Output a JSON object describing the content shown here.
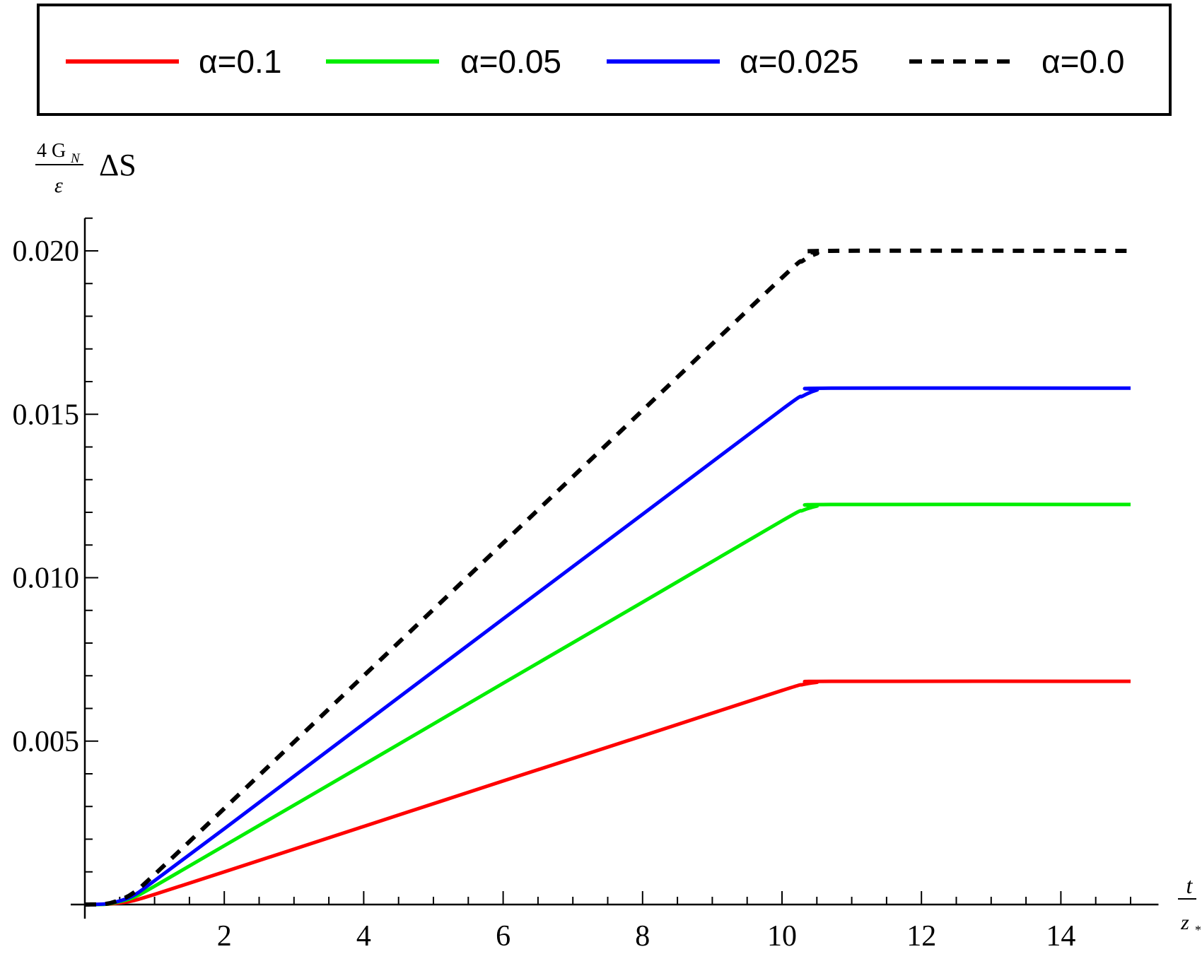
{
  "chart_data": {
    "type": "line",
    "title": "",
    "xlabel": {
      "numerator": "t",
      "denominator": "z",
      "denominator_sub": "*"
    },
    "ylabel": {
      "numerator": "4 G",
      "numerator_sub": "N",
      "denominator": "ε",
      "suffix": "ΔS"
    },
    "xlim": [
      0,
      15.4
    ],
    "ylim": [
      0,
      0.021
    ],
    "x_ticks": [
      2,
      4,
      6,
      8,
      10,
      12,
      14
    ],
    "x_tick_labels": [
      "2",
      "4",
      "6",
      "8",
      "10",
      "12",
      "14"
    ],
    "y_ticks": [
      0.005,
      0.01,
      0.015,
      0.02
    ],
    "y_tick_labels": [
      "0.005",
      "0.010",
      "0.015",
      "0.020"
    ],
    "grid": false,
    "legend_placement": "top (framed box above plot)",
    "x": [
      0,
      0.3,
      0.5,
      0.7,
      1,
      2,
      4,
      6,
      8,
      10,
      10.3,
      10.5,
      10.7,
      15
    ],
    "series": [
      {
        "name": "α=0.1",
        "color": "#ff0000",
        "dashed": false,
        "values": [
          0,
          1e-05,
          5e-05,
          0.00012,
          0.00031,
          0.001,
          0.00239,
          0.00378,
          0.00516,
          0.00655,
          0.00673,
          0.0068,
          0.00683,
          0.00683
        ]
      },
      {
        "name": "α=0.05",
        "color": "#00ee00",
        "dashed": false,
        "values": [
          0,
          1e-05,
          9e-05,
          0.00022,
          0.00056,
          0.0018,
          0.00428,
          0.00677,
          0.00925,
          0.01174,
          0.01206,
          0.01219,
          0.01224,
          0.01224
        ]
      },
      {
        "name": "α=0.025",
        "color": "#0000ff",
        "dashed": false,
        "values": [
          0,
          2e-05,
          0.00011,
          0.00028,
          0.00073,
          0.00232,
          0.00553,
          0.00874,
          0.01194,
          0.01515,
          0.01556,
          0.01574,
          0.0158,
          0.0158
        ]
      },
      {
        "name": "α=0.0",
        "color": "#000000",
        "dashed": true,
        "values": [
          0,
          2e-05,
          0.00014,
          0.00036,
          0.00092,
          0.00294,
          0.007,
          0.01106,
          0.01512,
          0.01918,
          0.0197,
          0.01992,
          0.02,
          0.02
        ]
      }
    ]
  }
}
